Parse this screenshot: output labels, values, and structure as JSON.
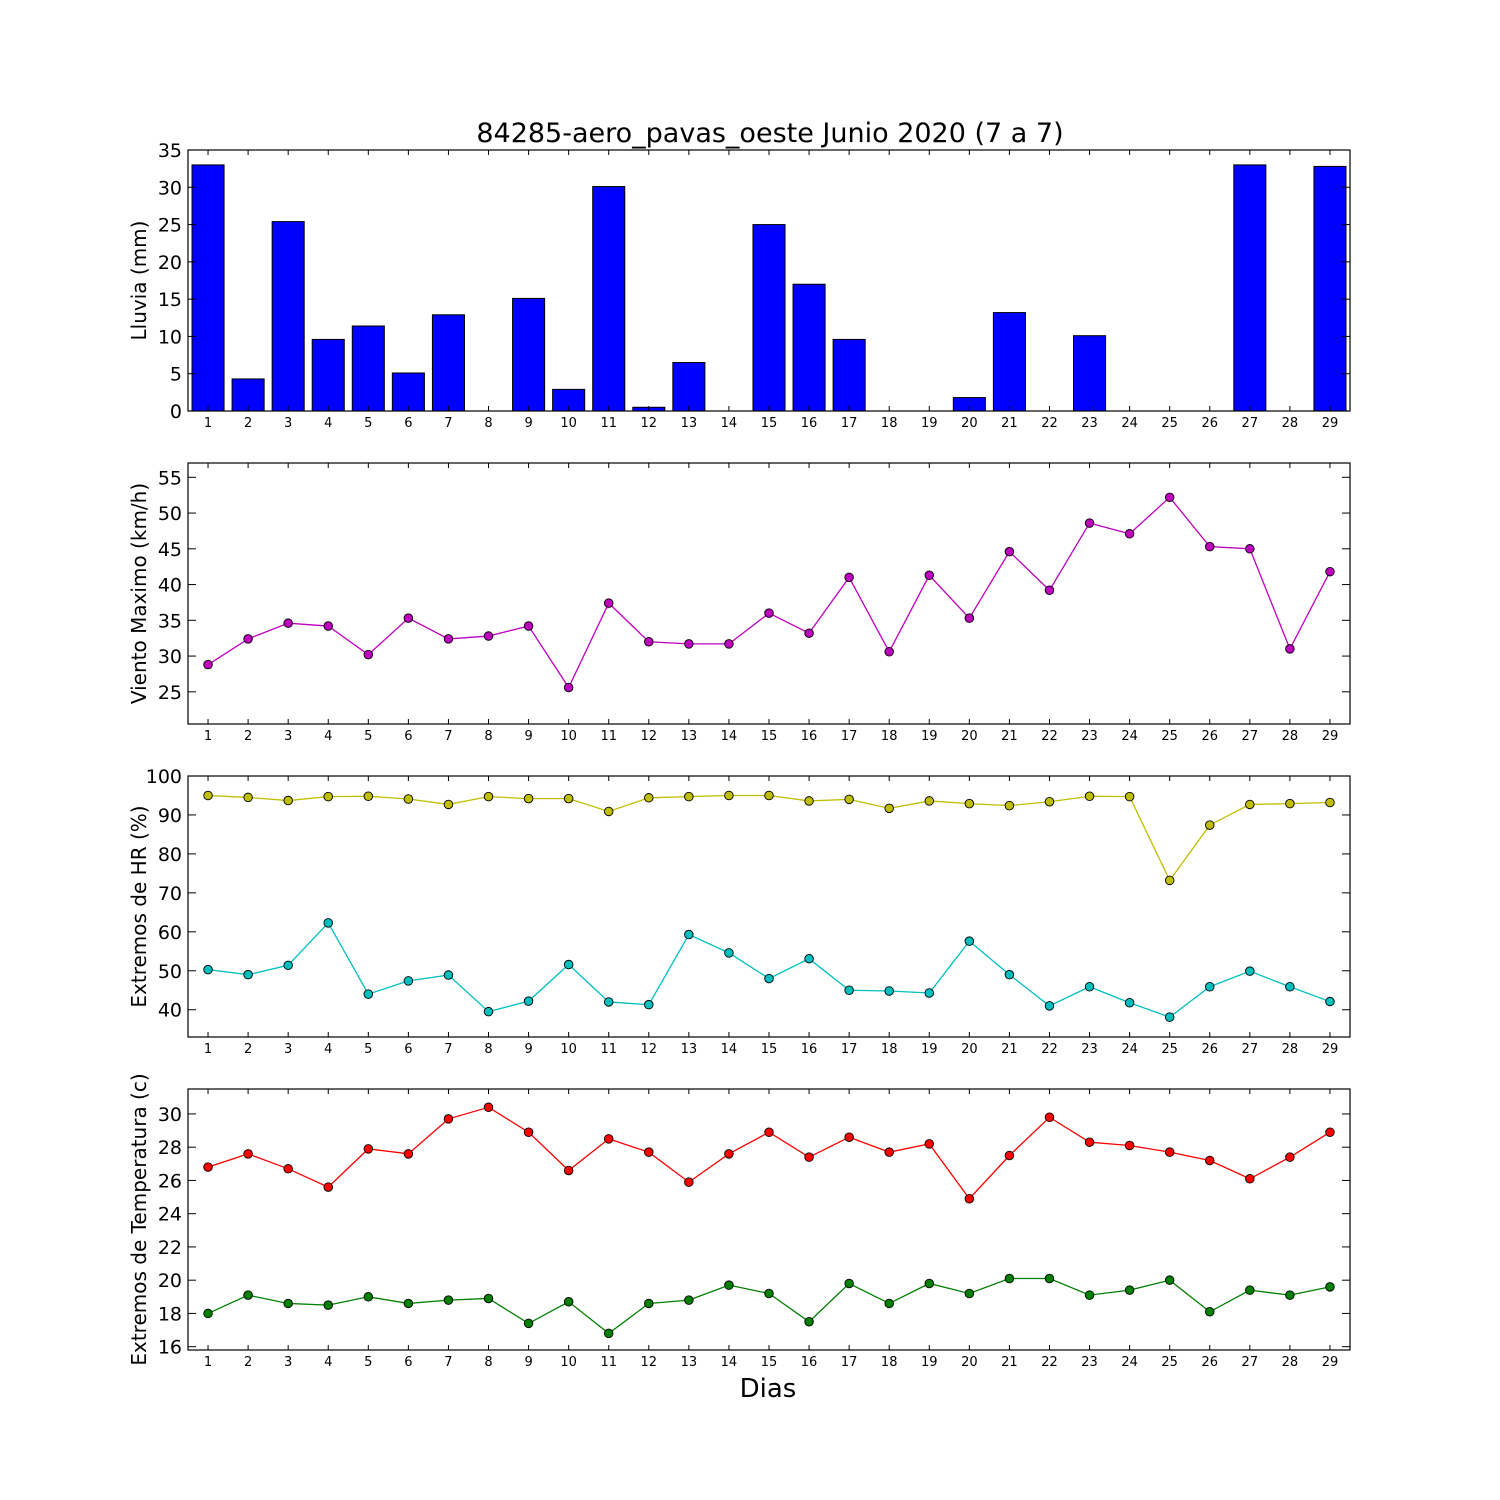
{
  "title": "84285-aero_pavas_oeste Junio 2020  (7 a 7)",
  "xlabel": "Dias",
  "chart_data": [
    {
      "type": "bar",
      "ylabel": "Lluvia (mm)",
      "ylim": [
        0,
        35
      ],
      "yticks": [
        0,
        5,
        10,
        15,
        20,
        25,
        30,
        35
      ],
      "x": [
        1,
        2,
        3,
        4,
        5,
        6,
        7,
        8,
        9,
        10,
        11,
        12,
        13,
        14,
        15,
        16,
        17,
        18,
        19,
        20,
        21,
        22,
        23,
        24,
        25,
        26,
        27,
        28,
        29
      ],
      "xlim": [
        0.5,
        29.5
      ],
      "series": [
        {
          "color": "#0000ff",
          "values": [
            33.0,
            4.3,
            25.4,
            9.6,
            11.4,
            5.1,
            12.9,
            0.0,
            15.1,
            2.9,
            30.1,
            0.5,
            6.5,
            0.0,
            25.0,
            17.0,
            9.6,
            0.0,
            0.0,
            1.8,
            13.2,
            0.0,
            10.1,
            0.0,
            0.0,
            0.0,
            33.0,
            0.0,
            32.8
          ]
        }
      ]
    },
    {
      "type": "line",
      "ylabel": "Viento Maximo (km/h)",
      "ylim": [
        20.5,
        57
      ],
      "yticks": [
        25,
        30,
        35,
        40,
        45,
        50,
        55
      ],
      "x": [
        1,
        2,
        3,
        4,
        5,
        6,
        7,
        8,
        9,
        10,
        11,
        12,
        13,
        14,
        15,
        16,
        17,
        18,
        19,
        20,
        21,
        22,
        23,
        24,
        25,
        26,
        27,
        28,
        29
      ],
      "xlim": [
        0.5,
        29.5
      ],
      "series": [
        {
          "color": "#bf00bf",
          "values": [
            28.8,
            32.4,
            34.6,
            34.2,
            30.2,
            35.3,
            32.4,
            32.8,
            34.2,
            25.6,
            37.4,
            32.0,
            31.7,
            31.7,
            36.0,
            33.2,
            41.0,
            30.6,
            41.3,
            35.3,
            44.6,
            39.2,
            48.6,
            47.1,
            52.2,
            45.3,
            45.0,
            31.0,
            41.8
          ]
        }
      ]
    },
    {
      "type": "line",
      "ylabel": "Extremos de HR (%)",
      "ylim": [
        33,
        100
      ],
      "yticks": [
        40,
        50,
        60,
        70,
        80,
        90,
        100
      ],
      "x": [
        1,
        2,
        3,
        4,
        5,
        6,
        7,
        8,
        9,
        10,
        11,
        12,
        13,
        14,
        15,
        16,
        17,
        18,
        19,
        20,
        21,
        22,
        23,
        24,
        25,
        26,
        27,
        28,
        29
      ],
      "xlim": [
        0.5,
        29.5
      ],
      "series": [
        {
          "color": "#bfbf00",
          "values": [
            95.0,
            94.5,
            93.7,
            94.7,
            94.8,
            94.1,
            92.7,
            94.7,
            94.2,
            94.2,
            90.9,
            94.4,
            94.7,
            95.0,
            95.0,
            93.6,
            94.0,
            91.7,
            93.6,
            92.9,
            92.4,
            93.4,
            94.8,
            94.7,
            73.2,
            87.4,
            92.7,
            92.9,
            93.2
          ]
        },
        {
          "color": "#00bfbf",
          "values": [
            50.3,
            49.0,
            51.4,
            62.3,
            44.0,
            47.4,
            48.9,
            39.5,
            42.2,
            51.6,
            42.0,
            41.3,
            59.3,
            54.6,
            48.0,
            53.1,
            45.0,
            44.8,
            44.3,
            57.6,
            49.0,
            41.0,
            45.9,
            41.8,
            38.1,
            45.9,
            49.9,
            45.9,
            42.1
          ]
        }
      ]
    },
    {
      "type": "line",
      "ylabel": "Extremos de Temperatura (c)",
      "ylim": [
        15.8,
        31.5
      ],
      "yticks": [
        16,
        18,
        20,
        22,
        24,
        26,
        28,
        30
      ],
      "x": [
        1,
        2,
        3,
        4,
        5,
        6,
        7,
        8,
        9,
        10,
        11,
        12,
        13,
        14,
        15,
        16,
        17,
        18,
        19,
        20,
        21,
        22,
        23,
        24,
        25,
        26,
        27,
        28,
        29
      ],
      "xlim": [
        0.5,
        29.5
      ],
      "series": [
        {
          "color": "#ff0000",
          "values": [
            26.8,
            27.6,
            26.7,
            25.6,
            27.9,
            27.6,
            29.7,
            30.4,
            28.9,
            26.6,
            28.5,
            27.7,
            25.9,
            27.6,
            28.9,
            27.4,
            28.6,
            27.7,
            28.2,
            24.9,
            27.5,
            29.8,
            28.3,
            28.1,
            27.7,
            27.2,
            26.1,
            27.4,
            28.9
          ]
        },
        {
          "color": "#008000",
          "values": [
            18.0,
            19.1,
            18.6,
            18.5,
            19.0,
            18.6,
            18.8,
            18.9,
            17.4,
            18.7,
            16.8,
            18.6,
            18.8,
            19.7,
            19.2,
            17.5,
            19.8,
            18.6,
            19.8,
            19.2,
            20.1,
            20.1,
            19.1,
            19.4,
            20.0,
            18.1,
            19.4,
            19.1,
            19.6
          ]
        }
      ]
    }
  ]
}
